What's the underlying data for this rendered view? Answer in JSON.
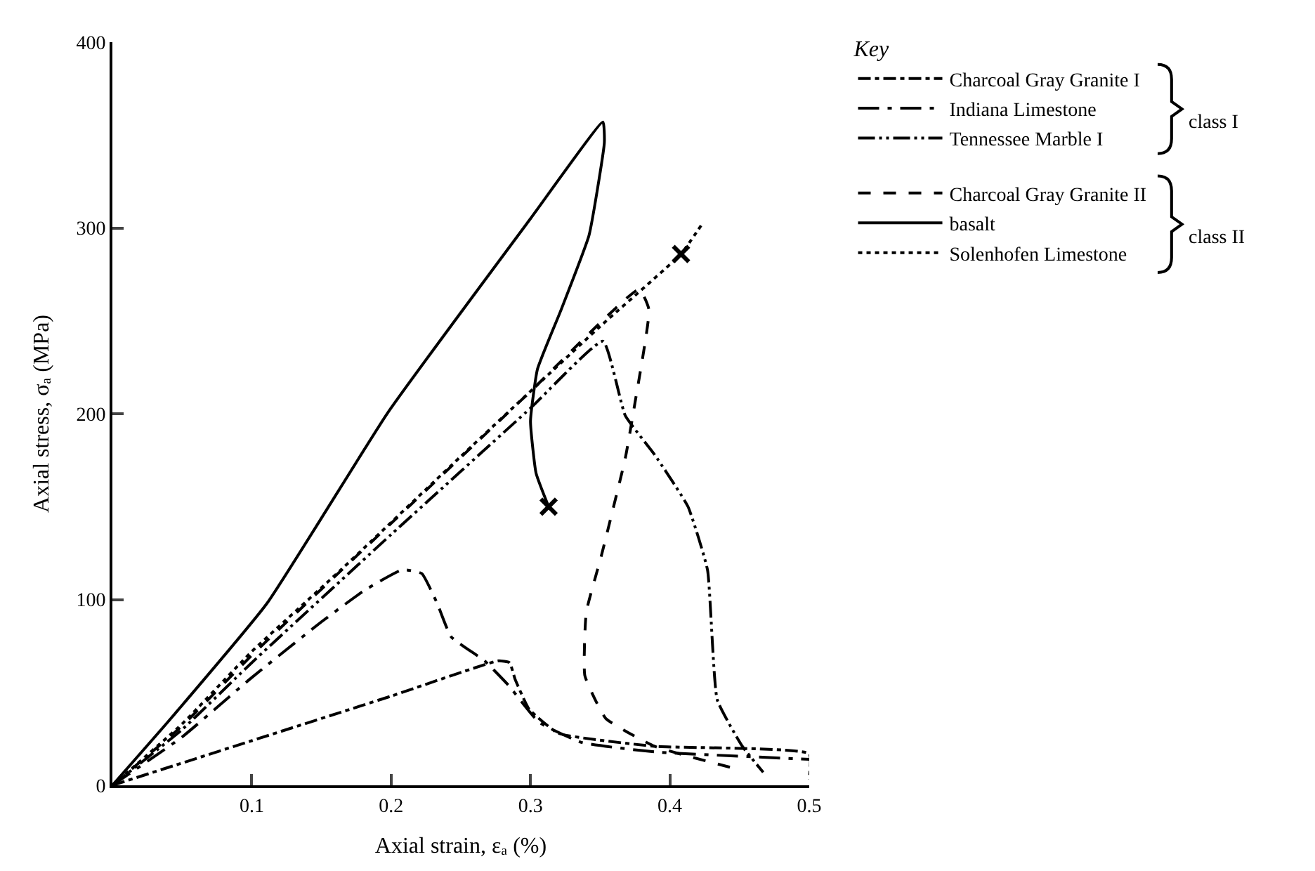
{
  "chart_data": {
    "type": "line",
    "xlabel": "Axial strain, εₐ (%)",
    "ylabel": "Axial stress, σₐ (MPa)",
    "legend_title": "Key",
    "legend": "top right",
    "marker": "none",
    "xlim": [
      0,
      0.5
    ],
    "xticks": [
      0.1,
      0.2,
      0.3,
      0.4,
      0.5
    ],
    "ylim": [
      0,
      400
    ],
    "yticks": [
      0,
      100,
      200,
      300,
      400
    ],
    "annotations": [
      "class I",
      "class II"
    ],
    "series": [
      {
        "name": "Charcoal Gray Granite I",
        "color": "#000000",
        "line_style": "dashdot",
        "x": [
          0,
          0.1,
          0.2,
          0.277,
          0.285,
          0.289,
          0.299,
          0.32,
          0.389,
          0.5,
          0.5
        ],
        "values": [
          0,
          24,
          48,
          67,
          66,
          57,
          41,
          28,
          21,
          17,
          3
        ]
      },
      {
        "name": "Indiana Limestone",
        "color": "#000000",
        "line_style": "longdashdot",
        "x": [
          0,
          0.05,
          0.1,
          0.15,
          0.181,
          0.208,
          0.222,
          0.233,
          0.243,
          0.267,
          0.284,
          0.306,
          0.337,
          0.389,
          0.5
        ],
        "values": [
          0,
          26,
          58,
          88,
          105,
          116,
          114,
          98,
          80,
          67,
          54,
          34,
          23,
          18,
          14
        ]
      },
      {
        "name": "Tennessee Marble I",
        "color": "#000000",
        "line_style": "dashdotdot",
        "x": [
          0,
          0.05,
          0.1,
          0.2,
          0.3,
          0.352,
          0.368,
          0.389,
          0.413,
          0.427,
          0.434,
          0.452,
          0.467
        ],
        "values": [
          0,
          30,
          66,
          135,
          203,
          239,
          199,
          178,
          150,
          116,
          46,
          21,
          7
        ]
      },
      {
        "name": "Charcoal Gray Granite II",
        "color": "#000000",
        "line_style": "dashed",
        "x": [
          0,
          0.05,
          0.1,
          0.2,
          0.3,
          0.378,
          0.385,
          0.375,
          0.368,
          0.351,
          0.34,
          0.339,
          0.354,
          0.389,
          0.447
        ],
        "values": [
          0,
          32,
          70,
          141,
          212,
          267,
          256,
          206,
          176,
          124,
          93,
          59,
          36,
          21,
          9
        ]
      },
      {
        "name": "basalt",
        "color": "#000000",
        "line_style": "solid",
        "x": [
          0,
          0.042,
          0.111,
          0.198,
          0.3,
          0.352,
          0.353,
          0.342,
          0.322,
          0.305,
          0.3,
          0.304,
          0.313
        ],
        "values": [
          0,
          36,
          98,
          201,
          305,
          357,
          346,
          296,
          256,
          224,
          196,
          168,
          150
        ]
      },
      {
        "name": "Solenhofen Limestone",
        "color": "#000000",
        "line_style": "dotted",
        "x": [
          0,
          0.05,
          0.1,
          0.164,
          0.25,
          0.35,
          0.408,
          0.423
        ],
        "values": [
          0,
          33,
          72,
          116,
          177,
          247,
          286,
          302
        ]
      },
      {
        "type": "scatter",
        "marker": "cross",
        "color": "#000000",
        "x": [
          0.313,
          0.408
        ],
        "values": [
          150,
          286
        ]
      }
    ]
  }
}
